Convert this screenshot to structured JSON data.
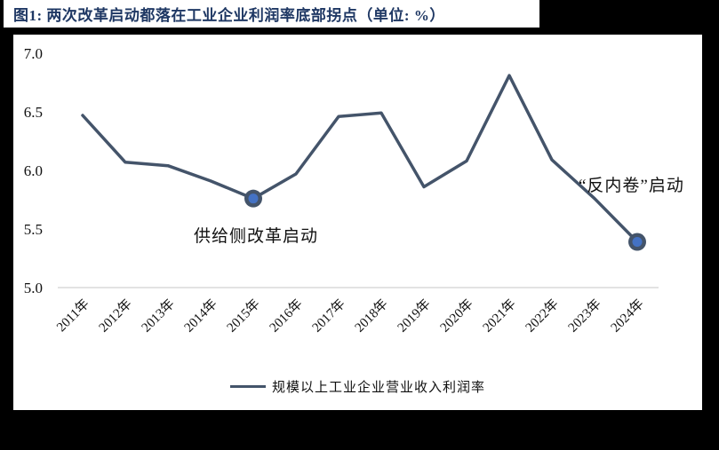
{
  "title": "图1:  两次改革启动都落在工业企业利润率底部拐点（单位: %）",
  "legend": {
    "label": "规模以上工业企业营业收入利润率"
  },
  "annotations": {
    "supply_side": "供给侧改革启动",
    "anti_involution": "“反内卷”启动"
  },
  "colors": {
    "title": "#1f3864",
    "line": "#44546a",
    "marker_fill": "#4472c4",
    "marker_ring": "#44546a",
    "axis_text": "#111111",
    "baseline": "#e3e3e3",
    "background": "#000000",
    "card": "#ffffff"
  },
  "chart_data": {
    "type": "line",
    "title": "图1:  两次改革启动都落在工业企业利润率底部拐点（单位: %）",
    "xlabel": "",
    "ylabel": "",
    "categories": [
      "2011年",
      "2012年",
      "2013年",
      "2014年",
      "2015年",
      "2016年",
      "2017年",
      "2018年",
      "2019年",
      "2020年",
      "2021年",
      "2022年",
      "2023年",
      "2024年"
    ],
    "series": [
      {
        "name": "规模以上工业企业营业收入利润率",
        "values": [
          6.47,
          6.07,
          6.04,
          5.91,
          5.76,
          5.97,
          6.46,
          6.49,
          5.86,
          6.08,
          6.81,
          6.09,
          5.76,
          5.39
        ]
      }
    ],
    "ylim": [
      5.0,
      7.0
    ],
    "yticks": [
      7.0,
      6.5,
      6.0,
      5.5,
      5.0
    ],
    "grid": false,
    "legend_position": "bottom",
    "highlight_points": [
      {
        "category": "2015年",
        "value": 5.76,
        "label": "供给侧改革启动"
      },
      {
        "category": "2024年",
        "value": 5.39,
        "label": "“反内卷”启动"
      }
    ]
  }
}
